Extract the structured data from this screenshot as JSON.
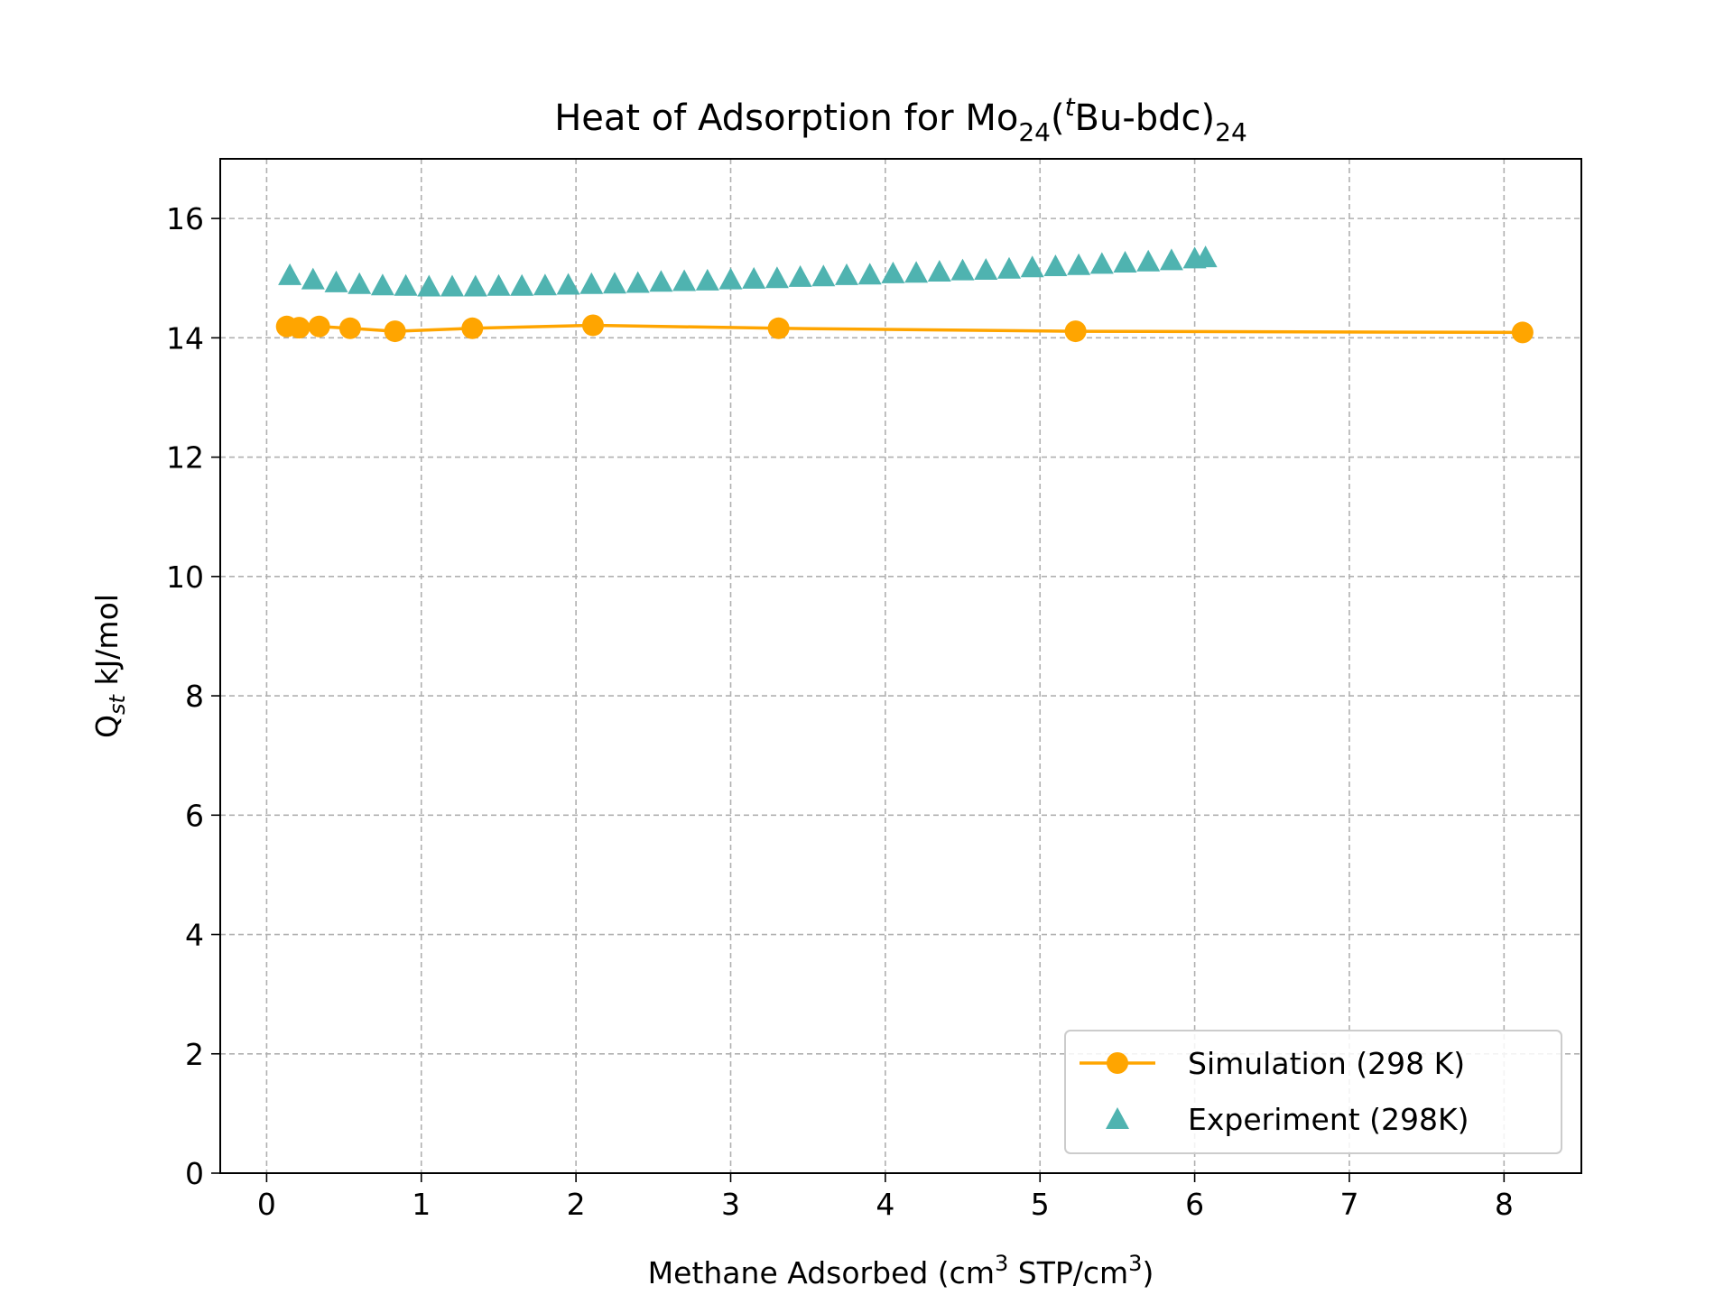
{
  "chart_data": {
    "type": "line",
    "title": {
      "prefix": "Heat of Adsorption for Mo",
      "sub1": "24",
      "open": "(",
      "sup": "t",
      "mid": "Bu-bdc)",
      "sub2": "24"
    },
    "xlabel": {
      "part1": "Methane Adsorbed (cm",
      "sup1": "3",
      "part2": " STP/cm",
      "sup2": "3",
      "part3": ")"
    },
    "ylabel": {
      "q": "Q",
      "sub": "st",
      "rest": " kJ/mol"
    },
    "xlim": [
      -0.3,
      8.5
    ],
    "ylim": [
      0,
      17
    ],
    "xticks": [
      "0",
      "1",
      "2",
      "3",
      "4",
      "5",
      "6",
      "7",
      "8"
    ],
    "yticks": [
      "0",
      "2",
      "4",
      "6",
      "8",
      "10",
      "12",
      "14",
      "16"
    ],
    "grid": true,
    "legend_position": "lower-right",
    "series": [
      {
        "name": "Simulation (298 K)",
        "marker": "circle",
        "line": true,
        "color": "#FFA500",
        "x": [
          0.13,
          0.21,
          0.34,
          0.54,
          0.83,
          1.33,
          2.11,
          3.31,
          5.23,
          8.12
        ],
        "y": [
          14.19,
          14.17,
          14.19,
          14.16,
          14.11,
          14.16,
          14.21,
          14.16,
          14.11,
          14.09
        ]
      },
      {
        "name": "Experiment (298K)",
        "marker": "triangle",
        "line": false,
        "color": "#4FB3B0",
        "x": [
          0.15,
          0.3,
          0.45,
          0.6,
          0.75,
          0.9,
          1.05,
          1.2,
          1.35,
          1.5,
          1.65,
          1.8,
          1.95,
          2.1,
          2.25,
          2.4,
          2.55,
          2.7,
          2.85,
          3.0,
          3.15,
          3.3,
          3.45,
          3.6,
          3.75,
          3.9,
          4.05,
          4.2,
          4.35,
          4.5,
          4.65,
          4.8,
          4.95,
          5.1,
          5.25,
          5.4,
          5.55,
          5.7,
          5.85,
          6.0,
          6.07
        ],
        "y": [
          15.05,
          14.98,
          14.93,
          14.9,
          14.88,
          14.87,
          14.86,
          14.86,
          14.86,
          14.87,
          14.87,
          14.88,
          14.89,
          14.9,
          14.91,
          14.92,
          14.94,
          14.95,
          14.96,
          14.98,
          14.99,
          15.0,
          15.02,
          15.03,
          15.05,
          15.06,
          15.08,
          15.09,
          15.11,
          15.13,
          15.14,
          15.16,
          15.18,
          15.2,
          15.22,
          15.24,
          15.26,
          15.28,
          15.3,
          15.33,
          15.35
        ]
      }
    ]
  }
}
